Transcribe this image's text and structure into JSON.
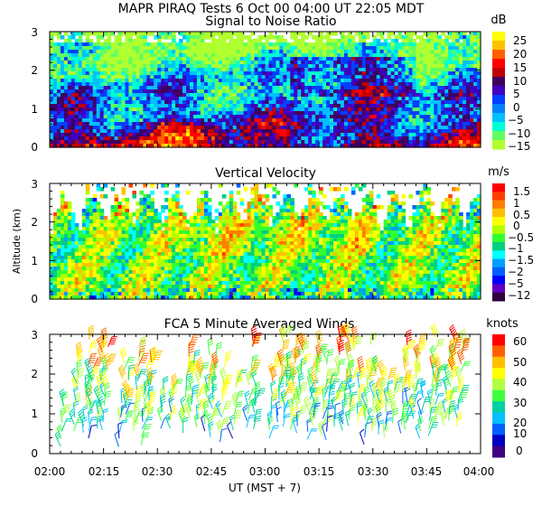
{
  "figure_title": "MAPR PIRAQ Tests   6 Oct 00   04:00 UT   22:05   MDT",
  "chart_data": [
    {
      "type": "heatmap",
      "title": "Signal to Noise Ratio",
      "ylim": [
        0,
        3
      ],
      "y_ticks": [
        "0",
        "1",
        "2",
        "3"
      ],
      "colorbar_unit": "dB",
      "colorbar_labels": [
        "25",
        "20",
        "15",
        "10",
        "5",
        "0",
        "−5",
        "−10",
        "−15"
      ],
      "colorbar_colors": [
        "#ffff00",
        "#ffc000",
        "#ff6000",
        "#ff0000",
        "#c00000",
        "#400060",
        "#4000c0",
        "#0040ff",
        "#0080ff",
        "#00c0ff",
        "#00ffd0",
        "#60ff60",
        "#b0ff30"
      ]
    },
    {
      "type": "heatmap",
      "title": "Vertical Velocity",
      "ylabel": "Altitude (km)",
      "ylim": [
        0,
        3
      ],
      "y_ticks": [
        "0",
        "1",
        "2",
        "3"
      ],
      "colorbar_unit": "m/s",
      "colorbar_labels": [
        "1.5",
        "1",
        "0.5",
        "0",
        "−0.5",
        "−1",
        "−1.5",
        "−2",
        "−5",
        "−12"
      ],
      "colorbar_colors": [
        "#ff0000",
        "#ff4000",
        "#ff8000",
        "#ffc000",
        "#ffff00",
        "#b0ff00",
        "#30ff30",
        "#00d080",
        "#00ffff",
        "#00a0ff",
        "#0060ff",
        "#0000ff",
        "#6000c0",
        "#300040"
      ]
    },
    {
      "type": "scatter",
      "title": "FCA 5 Minute Averaged Winds",
      "ylim": [
        0,
        3
      ],
      "y_ticks": [
        "0",
        "1",
        "2",
        "3"
      ],
      "colorbar_unit": "knots",
      "colorbar_labels": [
        "60",
        "50",
        "40",
        "30",
        "20",
        "10",
        "0"
      ],
      "colorbar_colors": [
        "#ff0000",
        "#ff6000",
        "#ffc000",
        "#ffff00",
        "#b0ff40",
        "#40ff40",
        "#00d0a0",
        "#00c0ff",
        "#0060ff",
        "#0000c0",
        "#400080"
      ]
    }
  ],
  "x_axis": {
    "ticks": [
      "02:00",
      "02:15",
      "02:30",
      "02:45",
      "03:00",
      "03:15",
      "03:30",
      "03:45",
      "04:00"
    ],
    "label": "UT   (MST + 7)"
  }
}
